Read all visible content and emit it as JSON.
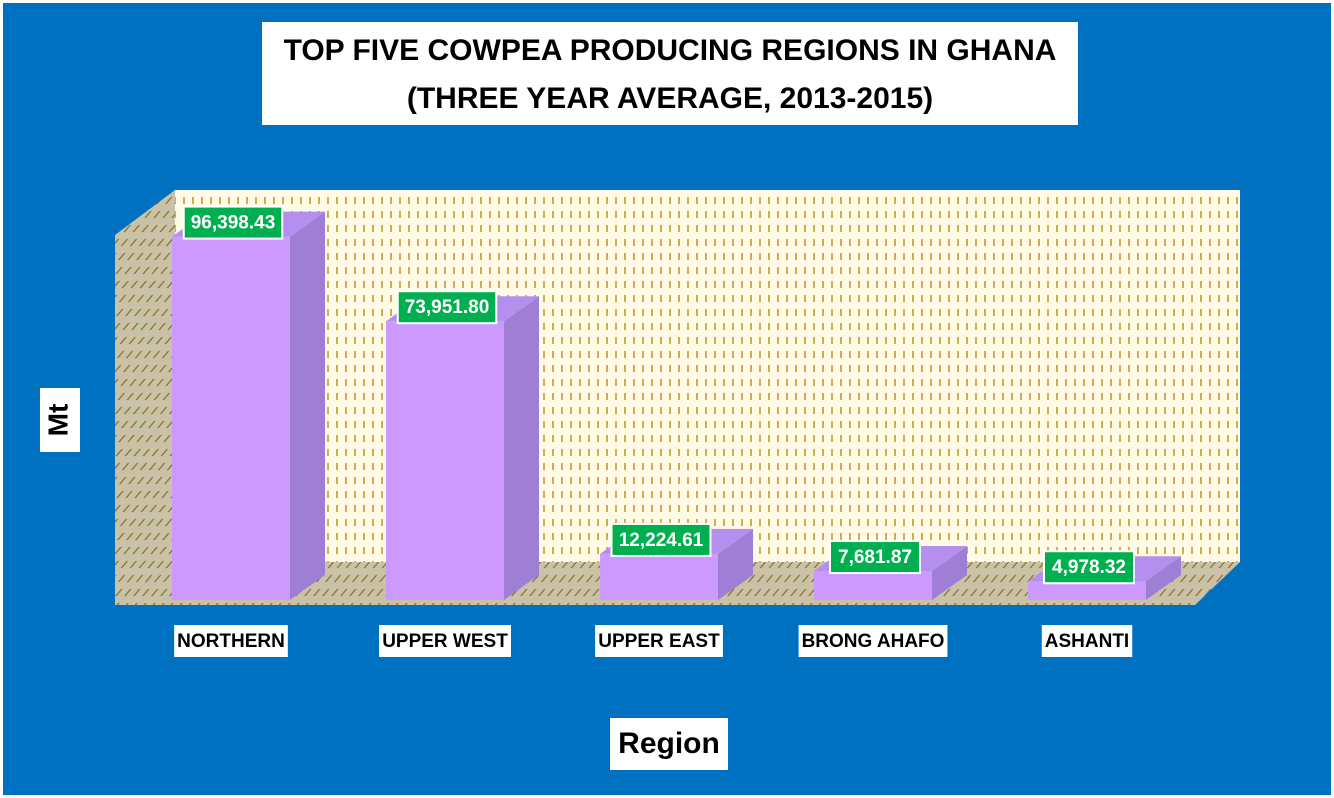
{
  "chart_data": {
    "type": "bar",
    "title": "TOP FIVE COWPEA PRODUCING REGIONS IN GHANA",
    "subtitle": "(THREE YEAR AVERAGE, 2013-2015)",
    "y_label": "Mt",
    "x_label": "Region",
    "categories": [
      "NORTHERN",
      "UPPER WEST",
      "UPPER EAST",
      "BRONG AHAFO",
      "ASHANTI"
    ],
    "values": [
      96398.43,
      73951.8,
      12224.61,
      7681.87,
      4978.32
    ],
    "value_labels": [
      "96,398.43",
      "73,951.80",
      "12,224.61",
      "7,681.87",
      "4,978.32"
    ],
    "color": "#cc99ff",
    "label_color": "#00b050",
    "ylim": [
      0,
      100000
    ]
  }
}
